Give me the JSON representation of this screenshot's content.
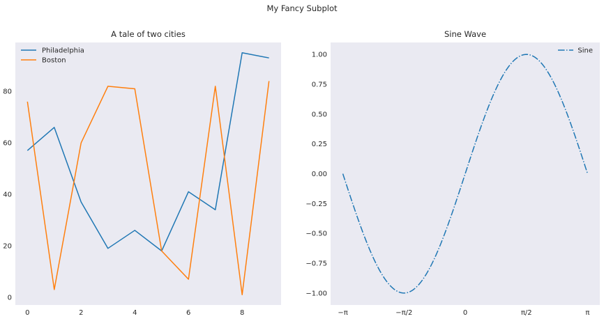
{
  "figure": {
    "suptitle": "My Fancy Subplot"
  },
  "chart_data": [
    {
      "type": "line",
      "title": "A tale of two cities",
      "xlabel": "",
      "ylabel": "",
      "x": [
        0,
        1,
        2,
        3,
        4,
        5,
        6,
        7,
        8,
        9
      ],
      "xlim": [
        -0.45,
        9.45
      ],
      "ylim": [
        -3,
        99
      ],
      "xticks": [
        0,
        2,
        4,
        6,
        8
      ],
      "xtick_labels": [
        "0",
        "2",
        "4",
        "6",
        "8"
      ],
      "yticks": [
        0,
        20,
        40,
        60,
        80
      ],
      "ytick_labels": [
        "0",
        "20",
        "40",
        "60",
        "80"
      ],
      "grid": false,
      "legend": "upper-left",
      "series": [
        {
          "name": "Philadelphia",
          "color": "#1f77b4",
          "style": "solid",
          "values": [
            57,
            66,
            37,
            19,
            26,
            18,
            41,
            34,
            95,
            93
          ]
        },
        {
          "name": "Boston",
          "color": "#ff7f0e",
          "style": "solid",
          "values": [
            76,
            3,
            60,
            82,
            81,
            18,
            7,
            82,
            1,
            84
          ]
        }
      ]
    },
    {
      "type": "line",
      "title": "Sine Wave",
      "xlabel": "",
      "ylabel": "",
      "function": "sin(x)",
      "x_range": [
        -3.14159,
        3.14159
      ],
      "xlim": [
        -3.4558,
        3.4558
      ],
      "ylim": [
        -1.1,
        1.1
      ],
      "xticks": [
        -3.14159,
        -1.5708,
        0,
        1.5708,
        3.14159
      ],
      "xtick_labels": [
        "−π",
        "−π/2",
        "0",
        "π/2",
        "π"
      ],
      "yticks": [
        -1.0,
        -0.75,
        -0.5,
        -0.25,
        0.0,
        0.25,
        0.5,
        0.75,
        1.0
      ],
      "ytick_labels": [
        "−1.00",
        "−0.75",
        "−0.50",
        "−0.25",
        "0.00",
        "0.25",
        "0.50",
        "0.75",
        "1.00"
      ],
      "grid": false,
      "legend": "upper-right",
      "series": [
        {
          "name": "Sine",
          "color": "#1f77b4",
          "style": "dashdot"
        }
      ]
    }
  ]
}
